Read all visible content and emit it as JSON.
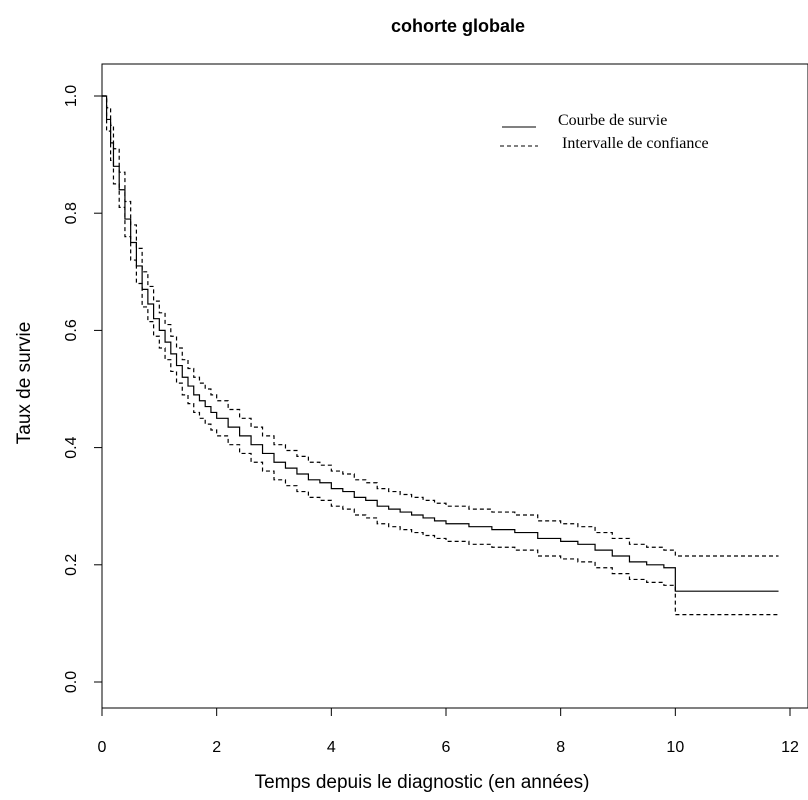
{
  "chart_data": {
    "type": "line",
    "title": "cohorte globale",
    "xlabel": "Temps depuis le diagnostic (en années)",
    "ylabel": "Taux de survie",
    "xlim": [
      0,
      12
    ],
    "ylim": [
      0.0,
      1.0
    ],
    "x_ticks": [
      "0",
      "2",
      "4",
      "6",
      "8",
      "10",
      "12"
    ],
    "y_ticks": [
      "0.0",
      "0.2",
      "0.4",
      "0.6",
      "0.8",
      "1.0"
    ],
    "step": true,
    "legend": {
      "position": "top-right",
      "items": [
        {
          "name": "Courbe de survie",
          "style": "solid"
        },
        {
          "name": "Intervalle de confiance",
          "style": "dashed"
        }
      ]
    },
    "series": [
      {
        "name": "Courbe de survie",
        "style": "solid",
        "x": [
          0,
          0.08,
          0.15,
          0.2,
          0.3,
          0.4,
          0.5,
          0.6,
          0.7,
          0.8,
          0.9,
          1.0,
          1.1,
          1.2,
          1.3,
          1.4,
          1.5,
          1.6,
          1.7,
          1.8,
          1.9,
          2.0,
          2.2,
          2.4,
          2.6,
          2.8,
          3.0,
          3.2,
          3.4,
          3.6,
          3.8,
          4.0,
          4.2,
          4.4,
          4.6,
          4.8,
          5.0,
          5.2,
          5.4,
          5.6,
          5.8,
          6.0,
          6.4,
          6.8,
          7.2,
          7.6,
          8.0,
          8.3,
          8.6,
          8.9,
          9.2,
          9.5,
          9.8,
          10.0,
          11.8
        ],
        "y": [
          1.0,
          0.96,
          0.92,
          0.88,
          0.84,
          0.79,
          0.75,
          0.71,
          0.67,
          0.645,
          0.62,
          0.6,
          0.58,
          0.56,
          0.54,
          0.52,
          0.505,
          0.49,
          0.48,
          0.47,
          0.46,
          0.45,
          0.435,
          0.42,
          0.405,
          0.39,
          0.375,
          0.365,
          0.355,
          0.345,
          0.34,
          0.33,
          0.325,
          0.315,
          0.31,
          0.3,
          0.295,
          0.29,
          0.285,
          0.28,
          0.275,
          0.27,
          0.265,
          0.26,
          0.255,
          0.245,
          0.24,
          0.235,
          0.225,
          0.215,
          0.205,
          0.2,
          0.195,
          0.155,
          0.155
        ]
      },
      {
        "name": "Intervalle de confiance",
        "style": "dashed",
        "x": [
          0,
          0.08,
          0.15,
          0.2,
          0.3,
          0.4,
          0.5,
          0.6,
          0.7,
          0.8,
          0.9,
          1.0,
          1.1,
          1.2,
          1.3,
          1.4,
          1.5,
          1.6,
          1.7,
          1.8,
          1.9,
          2.0,
          2.2,
          2.4,
          2.6,
          2.8,
          3.0,
          3.2,
          3.4,
          3.6,
          3.8,
          4.0,
          4.2,
          4.4,
          4.6,
          4.8,
          5.0,
          5.2,
          5.4,
          5.6,
          5.8,
          6.0,
          6.4,
          6.8,
          7.2,
          7.6,
          8.0,
          8.3,
          8.6,
          8.9,
          9.2,
          9.5,
          9.8,
          10.0,
          11.8
        ],
        "y": [
          1.0,
          0.98,
          0.95,
          0.91,
          0.87,
          0.82,
          0.78,
          0.74,
          0.7,
          0.675,
          0.65,
          0.63,
          0.61,
          0.59,
          0.57,
          0.55,
          0.535,
          0.52,
          0.51,
          0.5,
          0.49,
          0.48,
          0.465,
          0.45,
          0.435,
          0.42,
          0.405,
          0.395,
          0.385,
          0.375,
          0.37,
          0.36,
          0.355,
          0.345,
          0.34,
          0.33,
          0.325,
          0.32,
          0.315,
          0.31,
          0.305,
          0.3,
          0.295,
          0.29,
          0.285,
          0.275,
          0.27,
          0.265,
          0.255,
          0.245,
          0.235,
          0.23,
          0.225,
          0.215,
          0.215
        ]
      },
      {
        "name": "Intervalle de confiance",
        "style": "dashed",
        "x": [
          0,
          0.08,
          0.15,
          0.2,
          0.3,
          0.4,
          0.5,
          0.6,
          0.7,
          0.8,
          0.9,
          1.0,
          1.1,
          1.2,
          1.3,
          1.4,
          1.5,
          1.6,
          1.7,
          1.8,
          1.9,
          2.0,
          2.2,
          2.4,
          2.6,
          2.8,
          3.0,
          3.2,
          3.4,
          3.6,
          3.8,
          4.0,
          4.2,
          4.4,
          4.6,
          4.8,
          5.0,
          5.2,
          5.4,
          5.6,
          5.8,
          6.0,
          6.4,
          6.8,
          7.2,
          7.6,
          8.0,
          8.3,
          8.6,
          8.9,
          9.2,
          9.5,
          9.8,
          10.0,
          11.8
        ],
        "y": [
          1.0,
          0.94,
          0.89,
          0.85,
          0.81,
          0.76,
          0.72,
          0.68,
          0.64,
          0.615,
          0.59,
          0.57,
          0.55,
          0.53,
          0.51,
          0.49,
          0.475,
          0.46,
          0.45,
          0.44,
          0.43,
          0.42,
          0.405,
          0.39,
          0.375,
          0.36,
          0.345,
          0.335,
          0.325,
          0.315,
          0.31,
          0.3,
          0.295,
          0.285,
          0.28,
          0.27,
          0.265,
          0.26,
          0.255,
          0.25,
          0.245,
          0.24,
          0.235,
          0.23,
          0.225,
          0.215,
          0.21,
          0.205,
          0.195,
          0.185,
          0.175,
          0.17,
          0.165,
          0.115,
          0.115
        ]
      }
    ]
  }
}
